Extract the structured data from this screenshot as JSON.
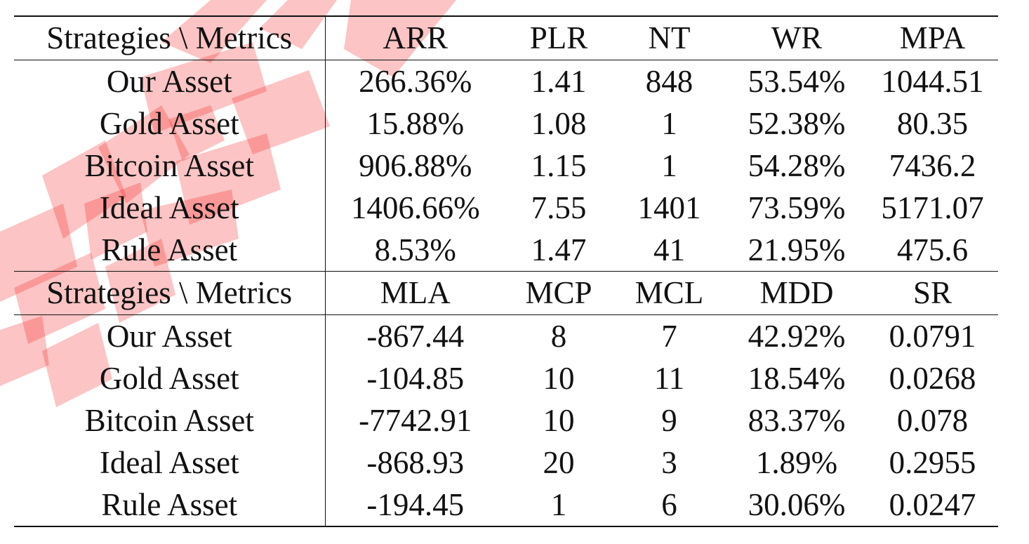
{
  "table": {
    "sections": [
      {
        "header": [
          "Strategies \\ Metrics",
          "ARR",
          "PLR",
          "NT",
          "WR",
          "MPA"
        ],
        "rows": [
          [
            "Our Asset",
            "266.36%",
            "1.41",
            "848",
            "53.54%",
            "1044.51"
          ],
          [
            "Gold Asset",
            "15.88%",
            "1.08",
            "1",
            "52.38%",
            "80.35"
          ],
          [
            "Bitcoin Asset",
            "906.88%",
            "1.15",
            "1",
            "54.28%",
            "7436.2"
          ],
          [
            "Ideal Asset",
            "1406.66%",
            "7.55",
            "1401",
            "73.59%",
            "5171.07"
          ],
          [
            "Rule Asset",
            "8.53%",
            "1.47",
            "41",
            "21.95%",
            "475.6"
          ]
        ]
      },
      {
        "header": [
          "Strategies \\ Metrics",
          "MLA",
          "MCP",
          "MCL",
          "MDD",
          "SR"
        ],
        "rows": [
          [
            "Our Asset",
            "-867.44",
            "8",
            "7",
            "42.92%",
            "0.0791"
          ],
          [
            "Gold Asset",
            "-104.85",
            "10",
            "11",
            "18.54%",
            "0.0268"
          ],
          [
            "Bitcoin Asset",
            "-7742.91",
            "10",
            "9",
            "83.37%",
            "0.078"
          ],
          [
            "Ideal Asset",
            "-868.93",
            "20",
            "3",
            "1.89%",
            "0.2955"
          ],
          [
            "Rule Asset",
            "-194.45",
            "1",
            "6",
            "30.06%",
            "0.0247"
          ]
        ]
      }
    ]
  },
  "colors": {
    "text": "#111111",
    "rule": "#111111",
    "watermark": "#f21a1a"
  }
}
